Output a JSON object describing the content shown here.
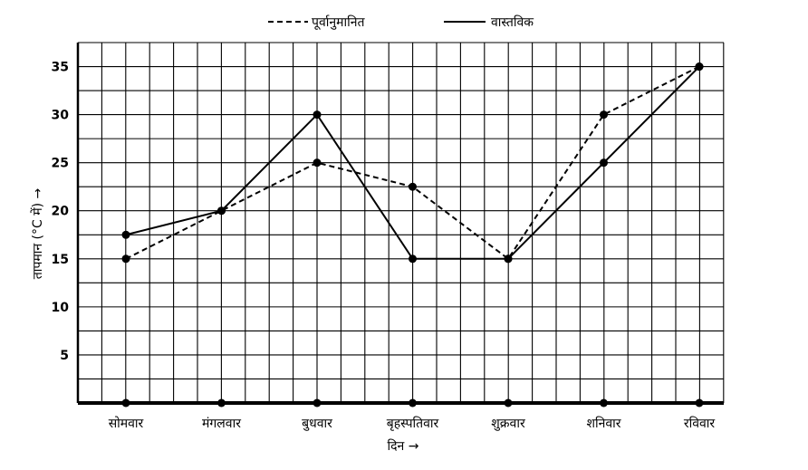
{
  "chart_data": {
    "type": "line",
    "categories": [
      "सोमवार",
      "मंगलवार",
      "बुधवार",
      "बृहस्पतिवार",
      "शुक्रवार",
      "शनिवार",
      "रविवार"
    ],
    "series": [
      {
        "name": "पूर्वानुमानित",
        "style": "dashed",
        "values": [
          15,
          20,
          25,
          22.5,
          15,
          30,
          35
        ]
      },
      {
        "name": "वास्तविक",
        "style": "solid",
        "values": [
          17.5,
          20,
          30,
          15,
          15,
          25,
          35
        ]
      }
    ],
    "xlabel": "दिन →",
    "ylabel": "तापमान (°C में) →",
    "yticks": [
      5,
      10,
      15,
      20,
      25,
      30,
      35
    ],
    "ylim": [
      0,
      37.5
    ],
    "grid": true,
    "legend_position": "top"
  }
}
